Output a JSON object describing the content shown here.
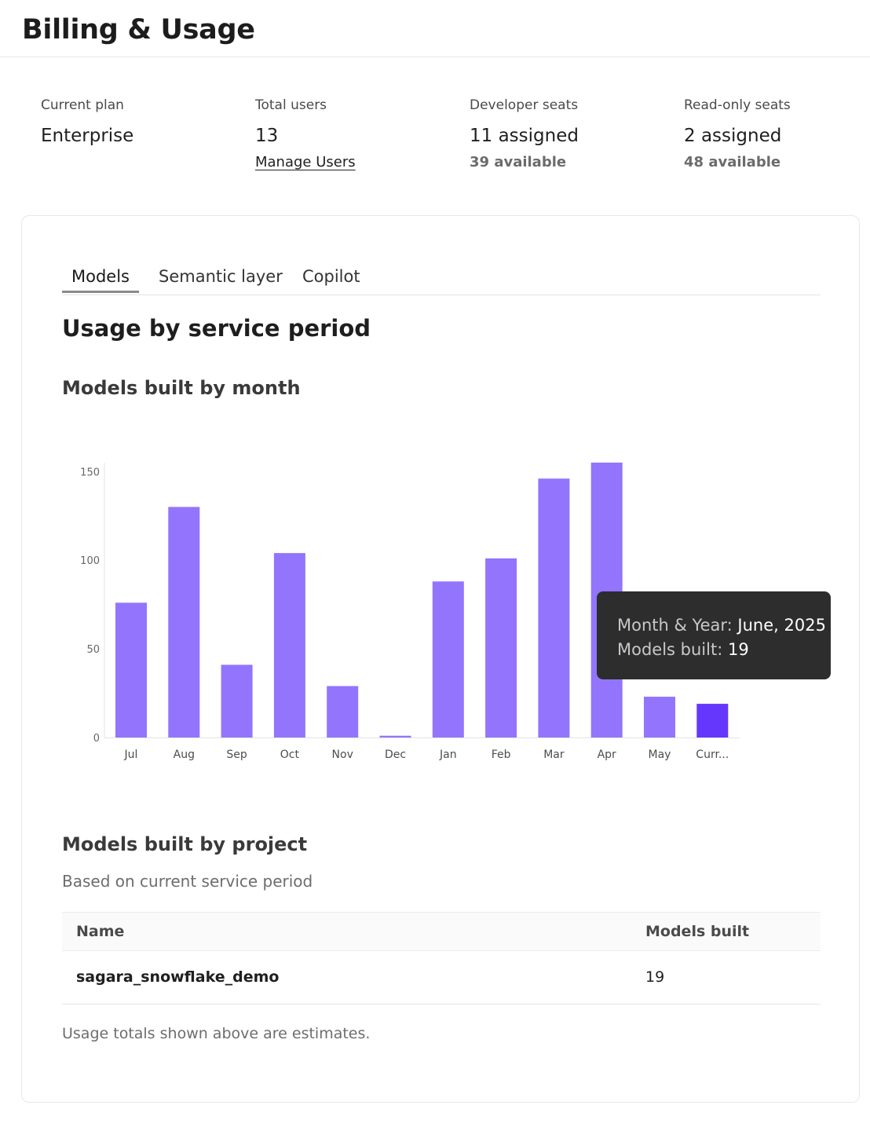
{
  "page": {
    "title": "Billing & Usage"
  },
  "stats": [
    {
      "label": "Current plan",
      "value": "Enterprise"
    },
    {
      "label": "Total users",
      "value": "13",
      "link": "Manage Users"
    },
    {
      "label": "Developer seats",
      "value": "11 assigned",
      "sub": "39 available"
    },
    {
      "label": "Read-only seats",
      "value": "2 assigned",
      "sub": "48 available"
    }
  ],
  "tabs": [
    {
      "label": "Models",
      "active": true
    },
    {
      "label": "Semantic layer",
      "active": false
    },
    {
      "label": "Copilot",
      "active": false
    }
  ],
  "usage": {
    "title": "Usage by service period",
    "chart_title": "Models built by month"
  },
  "chart_data": {
    "type": "bar",
    "title": "Models built by month",
    "categories": [
      "Jul",
      "Aug",
      "Sep",
      "Oct",
      "Nov",
      "Dec",
      "Jan",
      "Feb",
      "Mar",
      "Apr",
      "May",
      "Curr..."
    ],
    "values": [
      76,
      130,
      41,
      104,
      29,
      1,
      88,
      101,
      146,
      155,
      23,
      19
    ],
    "highlight_index": 11,
    "ylim": [
      0,
      155
    ],
    "yticks": [
      0,
      50,
      100,
      150
    ],
    "xlabel": "",
    "ylabel": "",
    "grid": false,
    "colors": {
      "bar": "#9275fc",
      "highlight": "#6536fb"
    }
  },
  "tooltip": {
    "key1": "Month & Year:",
    "val1": "June, 2025",
    "key2": "Models built:",
    "val2": "19"
  },
  "projects": {
    "title": "Models built by project",
    "subtitle": "Based on current service period",
    "columns": {
      "name": "Name",
      "models": "Models built"
    },
    "rows": [
      {
        "name": "sagara_snowflake_demo",
        "models": "19"
      }
    ],
    "footnote": "Usage totals shown above are estimates."
  }
}
